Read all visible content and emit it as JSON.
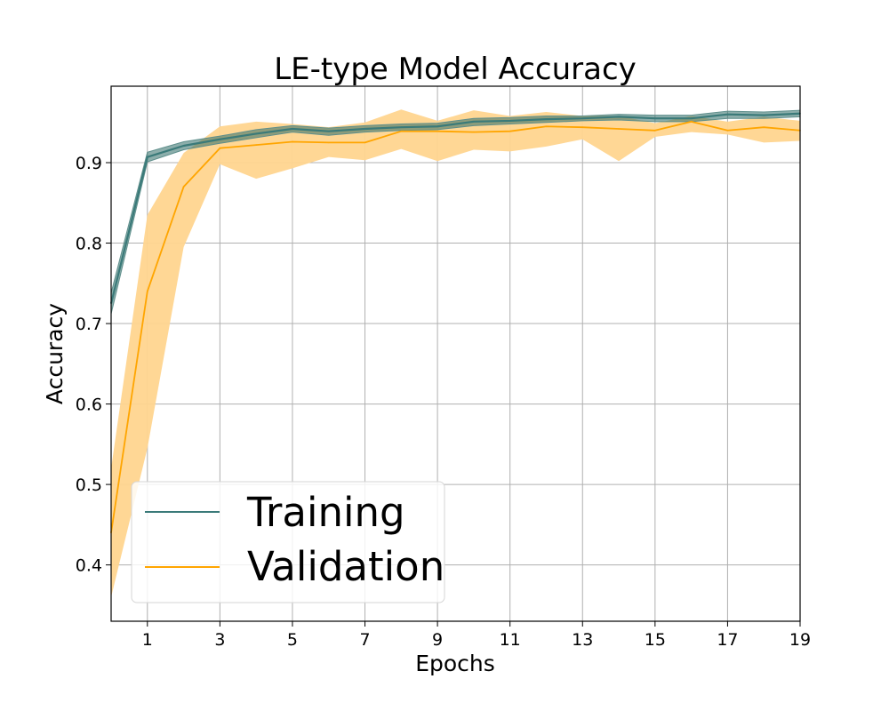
{
  "chart_data": {
    "type": "line",
    "title": "LE-type Model Accuracy",
    "xlabel": "Epochs",
    "ylabel": "Accuracy",
    "xlim": [
      0,
      19
    ],
    "ylim": [
      0.33,
      0.995
    ],
    "grid": true,
    "x": [
      0,
      1,
      2,
      3,
      4,
      5,
      6,
      7,
      8,
      9,
      10,
      11,
      12,
      13,
      14,
      15,
      16,
      17,
      18,
      19
    ],
    "x_ticks": [
      "1",
      "3",
      "5",
      "7",
      "9",
      "11",
      "13",
      "15",
      "17",
      "19"
    ],
    "y_ticks": [
      "0.4",
      "0.5",
      "0.6",
      "0.7",
      "0.8",
      "0.9"
    ],
    "legend": {
      "position": "lower-left"
    },
    "series": [
      {
        "name": "Training",
        "color": "#3a7a79",
        "band_color": "#2e6b66",
        "values": [
          0.725,
          0.907,
          0.921,
          0.929,
          0.936,
          0.942,
          0.939,
          0.942,
          0.944,
          0.945,
          0.951,
          0.952,
          0.954,
          0.955,
          0.957,
          0.955,
          0.955,
          0.96,
          0.959,
          0.961
        ],
        "band_lower": [
          0.712,
          0.901,
          0.916,
          0.924,
          0.931,
          0.938,
          0.934,
          0.938,
          0.94,
          0.941,
          0.946,
          0.948,
          0.95,
          0.952,
          0.953,
          0.951,
          0.951,
          0.955,
          0.955,
          0.957
        ],
        "band_upper": [
          0.738,
          0.913,
          0.926,
          0.933,
          0.941,
          0.946,
          0.943,
          0.946,
          0.948,
          0.949,
          0.955,
          0.956,
          0.958,
          0.958,
          0.96,
          0.959,
          0.959,
          0.964,
          0.963,
          0.965
        ]
      },
      {
        "name": "Validation",
        "color": "#ffa500",
        "band_color": "#ffd58f",
        "values": [
          0.44,
          0.74,
          0.87,
          0.918,
          0.922,
          0.926,
          0.925,
          0.925,
          0.939,
          0.939,
          0.938,
          0.939,
          0.945,
          0.944,
          0.942,
          0.94,
          0.951,
          0.94,
          0.944,
          0.94
        ],
        "band_lower": [
          0.36,
          0.545,
          0.795,
          0.898,
          0.88,
          0.893,
          0.907,
          0.903,
          0.917,
          0.902,
          0.916,
          0.914,
          0.92,
          0.929,
          0.902,
          0.932,
          0.938,
          0.935,
          0.925,
          0.927
        ],
        "band_upper": [
          0.52,
          0.835,
          0.912,
          0.945,
          0.951,
          0.948,
          0.944,
          0.95,
          0.966,
          0.952,
          0.965,
          0.958,
          0.963,
          0.958,
          0.958,
          0.949,
          0.958,
          0.951,
          0.957,
          0.952
        ]
      }
    ]
  }
}
